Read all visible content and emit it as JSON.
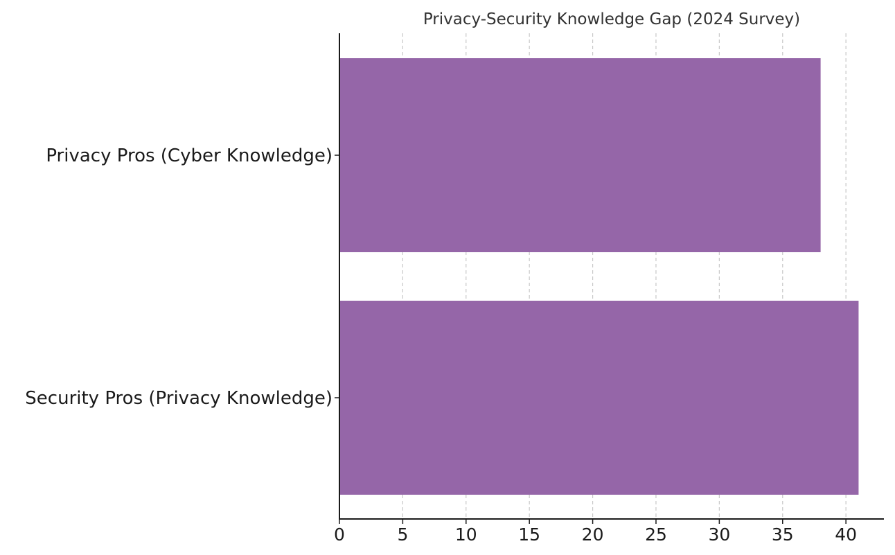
{
  "chart_data": {
    "type": "bar",
    "orientation": "horizontal",
    "title": "Privacy-Security Knowledge Gap (2024 Survey)",
    "xlabel": "",
    "ylabel": "",
    "categories": [
      "Privacy Pros (Cyber Knowledge)",
      "Security Pros (Privacy Knowledge)"
    ],
    "values": [
      38,
      41
    ],
    "xlim": [
      0,
      43
    ],
    "x_ticks": [
      0,
      5,
      10,
      15,
      20,
      25,
      30,
      35,
      40
    ],
    "grid": "vertical dashed",
    "legend": "none",
    "bar_color": "#9566A8"
  }
}
